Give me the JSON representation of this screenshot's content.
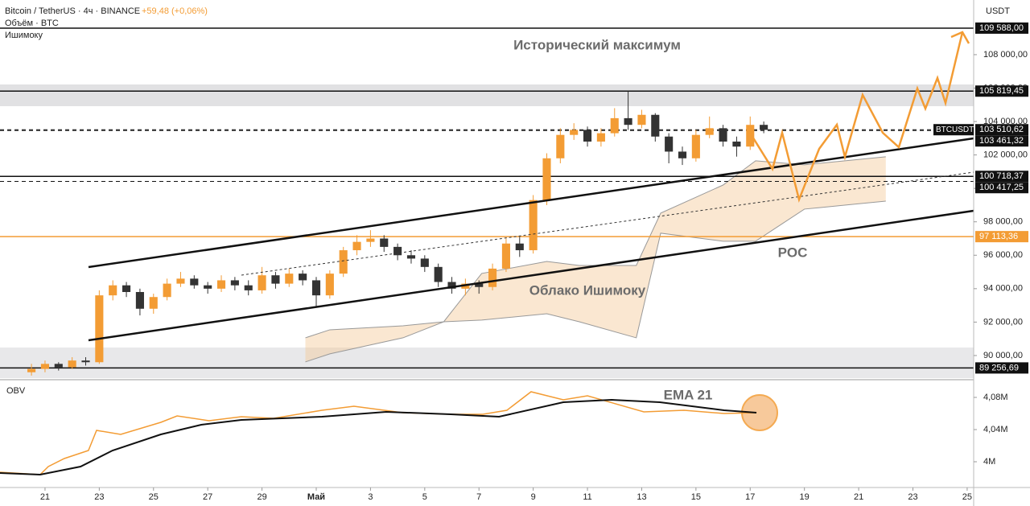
{
  "header": {
    "symbol": "Bitcoin / TetherUS · 4ч · BINANCE",
    "change": "+59,48 (+0,06%)",
    "volume": "Объём · BTC",
    "ichimoku": "Ишимоку",
    "currency": "USDT"
  },
  "chart_data": [
    {
      "type": "candlestick",
      "annotations": [
        "Исторический максимум",
        "Облако Ишимоку",
        "POC"
      ],
      "up_color": "#f39c34",
      "down_color": "#333333",
      "x": [
        20.5,
        21,
        21.5,
        22,
        22.5,
        23,
        23.5,
        24,
        24.5,
        25,
        25.5,
        26,
        26.5,
        27,
        27.5,
        28,
        28.5,
        29,
        29.5,
        30,
        30.5,
        31,
        31.5,
        32,
        32.5,
        33,
        33.5,
        34,
        34.5,
        35,
        35.5,
        36,
        36.5,
        37,
        37.5,
        38,
        38.5,
        39,
        39.5,
        40,
        40.5,
        41,
        41.5,
        42,
        42.5,
        43,
        43.5,
        44,
        44.5,
        45,
        45.5,
        46,
        46.5,
        47,
        47.5
      ],
      "open": [
        89000,
        89200,
        89500,
        89300,
        89700,
        89600,
        93600,
        94200,
        93800,
        92800,
        93500,
        94300,
        94600,
        94200,
        94000,
        94500,
        94200,
        93900,
        94800,
        94300,
        94900,
        94500,
        93600,
        94900,
        96300,
        96800,
        97000,
        96500,
        96000,
        95800,
        95300,
        94400,
        94000,
        94300,
        94100,
        95200,
        96700,
        96300,
        99300,
        101800,
        103200,
        103500,
        102800,
        103300,
        104200,
        103800,
        104400,
        103100,
        102200,
        101800,
        103200,
        103600,
        102800,
        102500,
        103800
      ],
      "high": [
        89500,
        89700,
        89600,
        89900,
        89900,
        93900,
        94500,
        94400,
        94000,
        93700,
        94600,
        95000,
        94800,
        94400,
        94800,
        94700,
        94500,
        95300,
        95000,
        95200,
        95100,
        94700,
        95100,
        96500,
        97200,
        97500,
        97200,
        96700,
        96300,
        96000,
        95500,
        94700,
        94600,
        94500,
        95500,
        97000,
        97100,
        99600,
        102100,
        103600,
        103900,
        103700,
        103600,
        104800,
        105800,
        104700,
        104500,
        103300,
        102500,
        103500,
        104300,
        103800,
        103100,
        104300,
        104000
      ],
      "low": [
        88800,
        89000,
        89100,
        89200,
        89400,
        89500,
        93300,
        93500,
        92400,
        92500,
        93300,
        94100,
        94000,
        93700,
        93800,
        93900,
        93600,
        93700,
        94000,
        94100,
        94200,
        92900,
        93400,
        94700,
        96000,
        96500,
        96200,
        95700,
        95500,
        95000,
        94100,
        93700,
        93600,
        93700,
        93900,
        95000,
        95900,
        96100,
        99000,
        101500,
        102900,
        102500,
        102500,
        103100,
        103500,
        103600,
        102800,
        101500,
        101400,
        101600,
        103000,
        102500,
        101900,
        102300,
        103300
      ],
      "close": [
        89200,
        89500,
        89300,
        89700,
        89600,
        93600,
        94200,
        93800,
        92800,
        93500,
        94300,
        94600,
        94200,
        94000,
        94500,
        94200,
        93900,
        94800,
        94300,
        94900,
        94500,
        93600,
        94900,
        96300,
        96800,
        97000,
        96500,
        96000,
        95800,
        95300,
        94400,
        94000,
        94300,
        94100,
        95200,
        96700,
        96300,
        99300,
        101800,
        103200,
        103500,
        102800,
        103300,
        104200,
        103800,
        104400,
        103100,
        102200,
        101800,
        103200,
        103600,
        102800,
        102500,
        103800,
        103500
      ],
      "cloud": {
        "color": "#f3c99a",
        "x": [
          30.6,
          31.5,
          34.2,
          35.7,
          37.1,
          39.5,
          40.7,
          42.8,
          43.7,
          46.0,
          47.2,
          49.0,
          52.0
        ],
        "upper": [
          91060,
          91540,
          91780,
          92020,
          94910,
          95630,
          95390,
          95390,
          98520,
          100200,
          101650,
          101410,
          101890
        ],
        "lower": [
          89620,
          90100,
          91060,
          92020,
          92120,
          92500,
          92020,
          91060,
          97320,
          96840,
          96840,
          98760,
          99240
        ]
      },
      "levels": [
        {
          "value": 109588,
          "label": "109 588,00",
          "color": "#111111",
          "dash": false
        },
        {
          "value": 105819.45,
          "label": "105 819,45",
          "color": "#111111",
          "dash": false
        },
        {
          "value": 103510.62,
          "label": "103 510,62",
          "name": "BTCUSDT",
          "color": "#111111",
          "dash": true
        },
        {
          "value": 103461.32,
          "label": "103 461,32",
          "color": "#111111",
          "dash": true
        },
        {
          "value": 100718.37,
          "label": "100 718,37",
          "color": "#111111",
          "dash": false
        },
        {
          "value": 100417.25,
          "label": "100 417,25",
          "color": "#111111",
          "dash": true
        },
        {
          "value": 97113.36,
          "label": "97 113,36",
          "color": "#f39c34",
          "dash": false
        },
        {
          "value": 89256.69,
          "label": "89 256,69",
          "color": "#111111",
          "dash": false
        }
      ],
      "xlim": [
        19.34,
        55.24
      ],
      "xticks": [
        21,
        23,
        25,
        27,
        29,
        {
          "value": 31,
          "label": "Май"
        },
        {
          "value": 33,
          "label": "3"
        },
        {
          "value": 35,
          "label": "5"
        },
        {
          "value": 37,
          "label": "7"
        },
        {
          "value": 39,
          "label": "9"
        },
        {
          "value": 41,
          "label": "11"
        },
        {
          "value": 43,
          "label": "13"
        },
        {
          "value": 45,
          "label": "15"
        },
        {
          "value": 47,
          "label": "17"
        },
        {
          "value": 49,
          "label": "19"
        },
        {
          "value": 51,
          "label": "21"
        },
        {
          "value": 53,
          "label": "23"
        },
        {
          "value": 55,
          "label": "25"
        }
      ],
      "ylim": [
        88650,
        111270
      ],
      "yticks": [
        {
          "value": 90000,
          "label": "90 000,00"
        },
        {
          "value": 92000,
          "label": "92 000,00"
        },
        {
          "value": 94000,
          "label": "94 000,00"
        },
        {
          "value": 96000,
          "label": "96 000,00"
        },
        {
          "value": 98000,
          "label": "98 000,00"
        },
        {
          "value": 100000,
          "label": "100 000,00"
        },
        {
          "value": 102000,
          "label": "102 000,00"
        },
        {
          "value": 104000,
          "label": "104 000,00"
        },
        {
          "value": 106000,
          "label": "106 000,00"
        },
        {
          "value": 108000,
          "label": "108 000,00"
        }
      ]
    },
    {
      "type": "line",
      "ylim": [
        3.968,
        4.096
      ],
      "yticks": [
        {
          "value": 4.08,
          "label": "4,08M"
        },
        {
          "value": 4.04,
          "label": "4,04M"
        },
        {
          "value": 4,
          "label": "4M"
        }
      ],
      "series": [
        {
          "name": "OBV",
          "color": "#f39c34",
          "x": [
            19.34,
            20.82,
            21.12,
            21.71,
            22.6,
            22.9,
            23.79,
            25.27,
            25.87,
            27.05,
            28.24,
            29.43,
            31.21,
            32.39,
            34.18,
            35.96,
            37.14,
            38.03,
            38.92,
            40.11,
            41.0,
            43.08,
            44.56,
            46.04,
            47.23
          ],
          "values": [
            3.987,
            3.984,
            3.994,
            4.004,
            4.014,
            4.039,
            4.034,
            4.049,
            4.057,
            4.051,
            4.056,
            4.054,
            4.064,
            4.069,
            4.061,
            4.059,
            4.059,
            4.064,
            4.087,
            4.077,
            4.082,
            4.062,
            4.064,
            4.06,
            4.061
          ]
        },
        {
          "name": "EMA 21",
          "color": "#111111",
          "x": [
            19.34,
            20.82,
            22.31,
            23.49,
            25.27,
            26.76,
            28.24,
            31.21,
            33.58,
            35.96,
            37.74,
            40.11,
            41.89,
            43.67,
            46.04,
            47.23
          ],
          "values": [
            3.986,
            3.984,
            3.994,
            4.014,
            4.034,
            4.046,
            4.052,
            4.056,
            4.062,
            4.059,
            4.056,
            4.074,
            4.077,
            4.074,
            4.064,
            4.061
          ]
        }
      ]
    }
  ]
}
